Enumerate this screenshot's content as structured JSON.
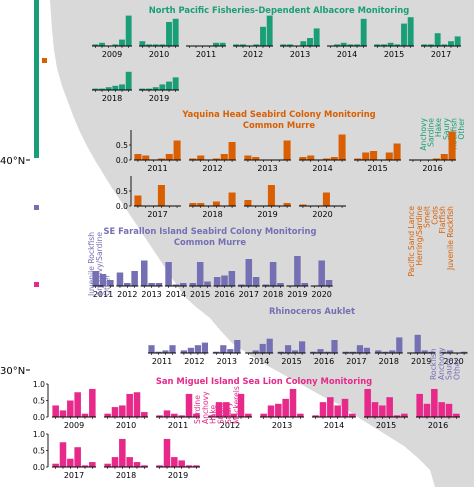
{
  "colors": {
    "albacore": "#1a9e77",
    "murre": "#d95f02",
    "farallon": "#7570b3",
    "sealion": "#e7298a",
    "land": "#d9d9d9",
    "axis": "#000000"
  },
  "map": {
    "lat_labels": [
      "40°N",
      "30°N"
    ]
  },
  "legend_bars": [
    {
      "name": "albacore-legend-bar",
      "color": "albacore"
    },
    {
      "name": "murre-legend-square",
      "color": "murre"
    },
    {
      "name": "farallon-legend-square",
      "color": "farallon"
    },
    {
      "name": "sealion-legend-square",
      "color": "sealion"
    }
  ],
  "chart_data": [
    {
      "type": "bar",
      "id": "albacore",
      "title": "North Pacific Fisheries-Dependent Albacore Monitoring",
      "subtitle": "",
      "ylim": [
        0,
        1
      ],
      "yticks": [],
      "prey_categories": [
        "Anchovy",
        "Sardine",
        "Hake",
        "Saury",
        "Rockfish",
        "Other"
      ],
      "series": [
        {
          "year": "2009",
          "values": [
            0.05,
            0.1,
            0.0,
            0.05,
            0.2,
            0.95
          ]
        },
        {
          "year": "2010",
          "values": [
            0.15,
            0.05,
            0.05,
            0.05,
            0.75,
            0.85
          ]
        },
        {
          "year": "2011",
          "values": [
            0.0,
            0.0,
            0.0,
            0.0,
            0.1,
            0.1
          ]
        },
        {
          "year": "2012",
          "values": [
            0.05,
            0.05,
            0.0,
            0.05,
            0.6,
            0.95
          ]
        },
        {
          "year": "2013",
          "values": [
            0.05,
            0.05,
            0.0,
            0.15,
            0.25,
            0.55
          ]
        },
        {
          "year": "2014",
          "values": [
            0.0,
            0.05,
            0.1,
            0.05,
            0.05,
            0.85
          ]
        },
        {
          "year": "2015",
          "values": [
            0.05,
            0.05,
            0.1,
            0.05,
            0.7,
            0.9
          ]
        },
        {
          "year": "2017",
          "values": [
            0.05,
            0.05,
            0.4,
            0.05,
            0.15,
            0.3
          ]
        },
        {
          "year": "2018",
          "values": [
            0.05,
            0.05,
            0.1,
            0.15,
            0.2,
            0.65
          ]
        },
        {
          "year": "2019",
          "values": [
            0.05,
            0.05,
            0.1,
            0.2,
            0.3,
            0.45
          ]
        }
      ]
    },
    {
      "type": "bar",
      "id": "murre",
      "title": "Yaquina Head Seabird Colony Monitoring",
      "subtitle": "Common Murre",
      "ylim": [
        0,
        1
      ],
      "yticks": [
        "0.0",
        "0.5"
      ],
      "prey_categories": [
        "Pacific Sand Lance",
        "Herring/Sardine",
        "Smelt",
        "Cods",
        "Flatfish",
        "Juvenile Rockfish"
      ],
      "series": [
        {
          "year": "2011",
          "values": [
            0.2,
            0.15,
            0.0,
            0.05,
            0.2,
            0.65
          ]
        },
        {
          "year": "2012",
          "values": [
            0.05,
            0.15,
            0.0,
            0.05,
            0.2,
            0.6
          ]
        },
        {
          "year": "2013",
          "values": [
            0.15,
            0.1,
            0.0,
            0.0,
            0.0,
            0.65
          ]
        },
        {
          "year": "2014",
          "values": [
            0.1,
            0.15,
            0.0,
            0.05,
            0.1,
            0.85
          ]
        },
        {
          "year": "2015",
          "values": [
            0.05,
            0.25,
            0.3,
            0.0,
            0.25,
            0.55
          ]
        },
        {
          "year": "2016",
          "values": [
            0.0,
            0.0,
            0.0,
            0.05,
            0.2,
            0.95
          ]
        },
        {
          "year": "2017",
          "values": [
            0.35,
            0.0,
            0.0,
            0.7,
            0.0,
            0.0
          ]
        },
        {
          "year": "2018",
          "values": [
            0.1,
            0.1,
            0.0,
            0.15,
            0.0,
            0.45
          ]
        },
        {
          "year": "2019",
          "values": [
            0.2,
            0.0,
            0.0,
            0.7,
            0.0,
            0.1
          ]
        },
        {
          "year": "2020",
          "values": [
            0.05,
            0.0,
            0.0,
            0.45,
            0.0,
            0.0
          ]
        }
      ]
    },
    {
      "type": "bar",
      "id": "farallon_murre",
      "title": "SE Farallon Island Seabird Colony Monitoring",
      "subtitle": "Common Murre",
      "ylim": [
        0,
        1
      ],
      "yticks": [],
      "prey_categories": [
        "Juvenile Rockfish",
        "Anchovy/Sardine",
        "Other"
      ],
      "series": [
        {
          "year": "2011",
          "values": [
            0.5,
            0.4,
            0.2
          ]
        },
        {
          "year": "2012",
          "values": [
            0.45,
            0.1,
            0.5
          ]
        },
        {
          "year": "2013",
          "values": [
            0.85,
            0.1,
            0.1
          ]
        },
        {
          "year": "2014",
          "values": [
            0.8,
            0.05,
            0.1
          ]
        },
        {
          "year": "2015",
          "values": [
            0.1,
            0.8,
            0.15
          ]
        },
        {
          "year": "2016",
          "values": [
            0.3,
            0.35,
            0.5
          ]
        },
        {
          "year": "2017",
          "values": [
            0.05,
            0.9,
            0.3
          ]
        },
        {
          "year": "2018",
          "values": [
            0.05,
            0.8,
            0.1
          ]
        },
        {
          "year": "2019",
          "values": [
            0.0,
            1.0,
            0.1
          ]
        },
        {
          "year": "2020",
          "values": [
            0.0,
            0.85,
            0.2
          ]
        }
      ]
    },
    {
      "type": "bar",
      "id": "farallon_auklet",
      "title": "Rhinoceros Auklet",
      "subtitle": "",
      "ylim": [
        0,
        1
      ],
      "yticks": [],
      "prey_categories": [
        "Rockfish",
        "Anchovy",
        "Saury",
        "Other"
      ],
      "series": [
        {
          "year": "2011",
          "values": [
            0.3,
            0.05,
            0.1,
            0.3
          ]
        },
        {
          "year": "2012",
          "values": [
            0.1,
            0.2,
            0.3,
            0.4
          ]
        },
        {
          "year": "2013",
          "values": [
            0.05,
            0.3,
            0.15,
            0.5
          ]
        },
        {
          "year": "2014",
          "values": [
            0.0,
            0.1,
            0.35,
            0.55
          ]
        },
        {
          "year": "2015",
          "values": [
            0.05,
            0.3,
            0.1,
            0.45
          ]
        },
        {
          "year": "2016",
          "values": [
            0.05,
            0.15,
            0.05,
            0.5
          ]
        },
        {
          "year": "2017",
          "values": [
            0.05,
            0.05,
            0.3,
            0.2
          ]
        },
        {
          "year": "2018",
          "values": [
            0.1,
            0.05,
            0.1,
            0.6
          ]
        },
        {
          "year": "2019",
          "values": [
            0.0,
            0.7,
            0.1,
            0.05
          ]
        },
        {
          "year": "2020",
          "values": [
            0.05,
            0.1,
            0.0,
            0.05
          ]
        }
      ]
    },
    {
      "type": "bar",
      "id": "sealion",
      "title": "San Miguel Island Sea Lion Colony Monitoring",
      "subtitle": "",
      "ylim": [
        0,
        1
      ],
      "yticks": [
        "0.0",
        "0.5",
        "1.0"
      ],
      "prey_categories": [
        "Sardine",
        "Anchovy",
        "Hake",
        "Squid",
        "Saury",
        "Mackerels"
      ],
      "series": [
        {
          "year": "2009",
          "values": [
            0.35,
            0.2,
            0.5,
            0.75,
            0.1,
            0.85
          ]
        },
        {
          "year": "2010",
          "values": [
            0.1,
            0.3,
            0.35,
            0.7,
            0.75,
            0.15
          ]
        },
        {
          "year": "2011",
          "values": [
            0.05,
            0.2,
            0.1,
            0.05,
            0.7,
            0.1
          ]
        },
        {
          "year": "2012",
          "values": [
            0.05,
            0.45,
            0.45,
            0.1,
            0.7,
            0.1
          ]
        },
        {
          "year": "2013",
          "values": [
            0.1,
            0.35,
            0.4,
            0.55,
            0.85,
            0.1
          ]
        },
        {
          "year": "2014",
          "values": [
            0.05,
            0.45,
            0.6,
            0.35,
            0.55,
            0.1
          ]
        },
        {
          "year": "2015",
          "values": [
            0.85,
            0.45,
            0.35,
            0.6,
            0.05,
            0.1
          ]
        },
        {
          "year": "2016",
          "values": [
            0.7,
            0.4,
            0.85,
            0.45,
            0.4,
            0.1
          ]
        },
        {
          "year": "2017",
          "values": [
            0.1,
            0.75,
            0.25,
            0.6,
            0.05,
            0.15
          ]
        },
        {
          "year": "2018",
          "values": [
            0.1,
            0.3,
            0.85,
            0.3,
            0.15,
            0.05
          ]
        },
        {
          "year": "2019",
          "values": [
            0.05,
            0.85,
            0.3,
            0.2,
            0.05,
            0.05
          ]
        }
      ]
    }
  ]
}
